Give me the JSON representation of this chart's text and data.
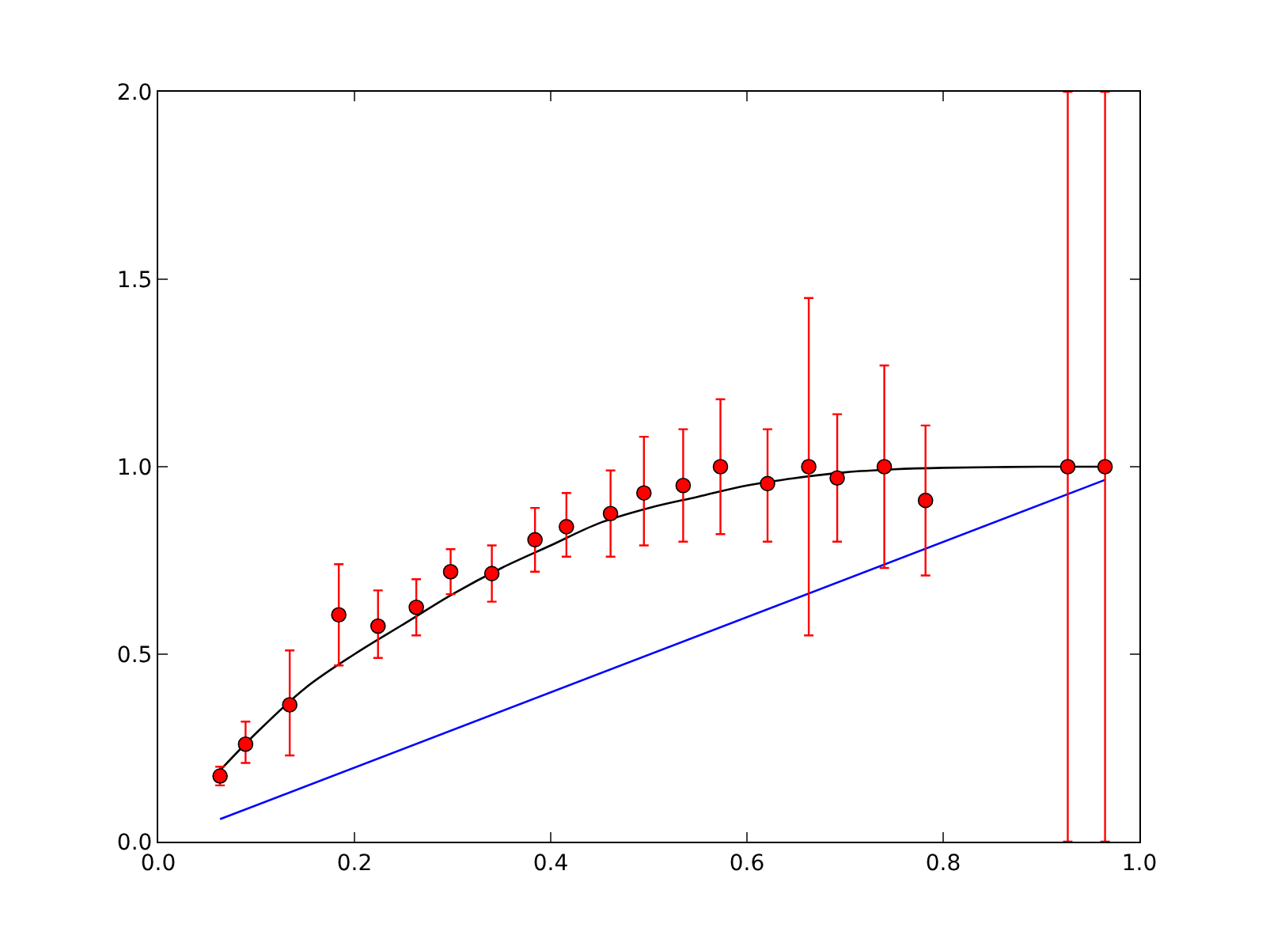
{
  "chart_data": {
    "type": "scatter",
    "xlim": [
      0,
      1
    ],
    "ylim": [
      0,
      2
    ],
    "xticks": [
      {
        "value": 0,
        "label": "0.0"
      },
      {
        "value": 0.2,
        "label": "0.2"
      },
      {
        "value": 0.4,
        "label": "0.4"
      },
      {
        "value": 0.6,
        "label": "0.6"
      },
      {
        "value": 0.8,
        "label": "0.8"
      },
      {
        "value": 1,
        "label": "1.0"
      }
    ],
    "yticks": [
      {
        "value": 0,
        "label": "0.0"
      },
      {
        "value": 0.5,
        "label": "0.5"
      },
      {
        "value": 1,
        "label": "1.0"
      },
      {
        "value": 1.5,
        "label": "1.5"
      },
      {
        "value": 2,
        "label": "2.0"
      }
    ],
    "grid": false,
    "series": [
      {
        "type": "line",
        "color": "#0000ff",
        "marker": "none",
        "line_style": "solid",
        "x": [
          0.063,
          0.965
        ],
        "values": [
          0.06,
          0.965
        ]
      },
      {
        "type": "line",
        "color": "#000000",
        "marker": "none",
        "line_style": "solid",
        "x": [
          0.063,
          0.1,
          0.15,
          0.2,
          0.25,
          0.3,
          0.35,
          0.4,
          0.45,
          0.5,
          0.55,
          0.6,
          0.65,
          0.7,
          0.75,
          0.8,
          0.9,
          0.965
        ],
        "values": [
          0.19,
          0.29,
          0.41,
          0.5,
          0.58,
          0.66,
          0.73,
          0.79,
          0.85,
          0.89,
          0.92,
          0.95,
          0.97,
          0.985,
          0.993,
          0.997,
          1.0,
          1.0
        ]
      },
      {
        "color": "#ff0000",
        "marker": "circle",
        "x": [
          0.063,
          0.089,
          0.134,
          0.184,
          0.224,
          0.263,
          0.298,
          0.34,
          0.384,
          0.416,
          0.461,
          0.495,
          0.535,
          0.573,
          0.621,
          0.663,
          0.692,
          0.74,
          0.782,
          0.927,
          0.965
        ],
        "values": [
          0.175,
          0.26,
          0.365,
          0.605,
          0.575,
          0.625,
          0.72,
          0.715,
          0.805,
          0.84,
          0.875,
          0.93,
          0.95,
          1.0,
          0.955,
          1.0,
          0.97,
          1.0,
          0.91,
          1.0,
          1.0
        ],
        "errors": [
          [
            0.15,
            0.2
          ],
          [
            0.21,
            0.32
          ],
          [
            0.23,
            0.51
          ],
          [
            0.47,
            0.74
          ],
          [
            0.49,
            0.67
          ],
          [
            0.55,
            0.7
          ],
          [
            0.66,
            0.78
          ],
          [
            0.64,
            0.79
          ],
          [
            0.72,
            0.89
          ],
          [
            0.76,
            0.93
          ],
          [
            0.76,
            0.99
          ],
          [
            0.79,
            1.08
          ],
          [
            0.8,
            1.1
          ],
          [
            0.82,
            1.18
          ],
          [
            0.8,
            1.1
          ],
          [
            0.55,
            1.45
          ],
          [
            0.8,
            1.14
          ],
          [
            0.73,
            1.27
          ],
          [
            0.71,
            1.11
          ],
          [
            0,
            2
          ],
          [
            0,
            2
          ]
        ]
      }
    ]
  }
}
